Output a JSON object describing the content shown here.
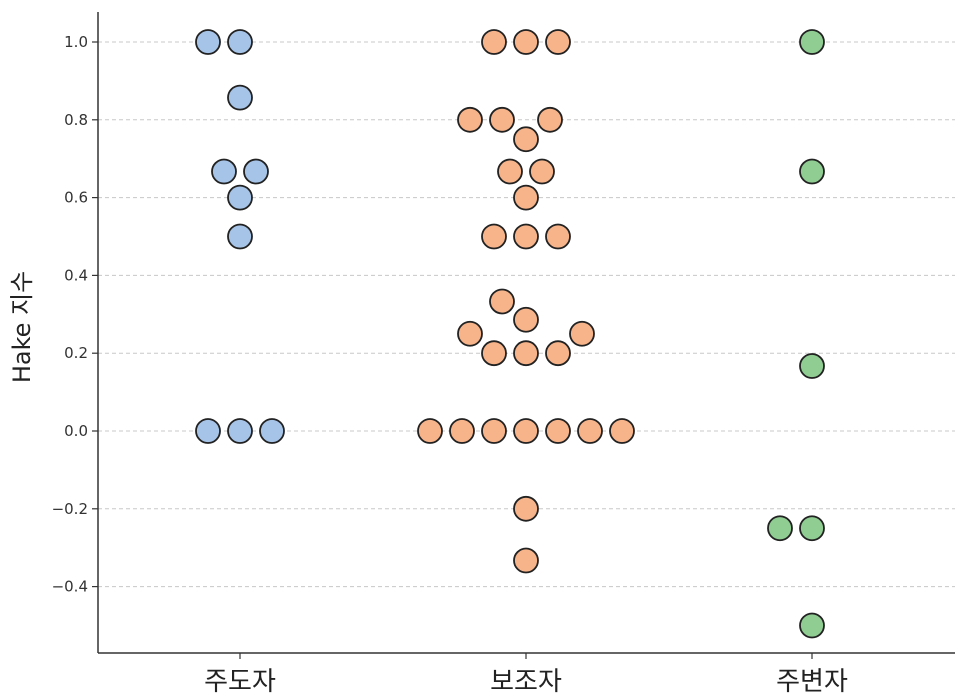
{
  "chart_data": {
    "type": "scatter",
    "subtype": "swarm",
    "title": "",
    "xlabel": "",
    "ylabel": "Hake 지수",
    "categories": [
      "주도자",
      "보조자",
      "주변자"
    ],
    "ylim": [
      -0.57,
      1.08
    ],
    "yticks": [
      -0.4,
      -0.2,
      0.0,
      0.2,
      0.4,
      0.6,
      0.8,
      1.0
    ],
    "ytick_labels": [
      "−0.4",
      "−0.2",
      "0.0",
      "0.2",
      "0.4",
      "0.6",
      "0.8",
      "1.0"
    ],
    "grid": true,
    "series": [
      {
        "name": "주도자",
        "color": "#a6c4e8",
        "points": [
          {
            "y": 1.0,
            "offset": -1
          },
          {
            "y": 1.0,
            "offset": 0
          },
          {
            "y": 0.857,
            "offset": 0
          },
          {
            "y": 0.667,
            "offset": -0.5
          },
          {
            "y": 0.667,
            "offset": 0.5
          },
          {
            "y": 0.6,
            "offset": 0
          },
          {
            "y": 0.5,
            "offset": 0
          },
          {
            "y": 0.0,
            "offset": -1
          },
          {
            "y": 0.0,
            "offset": 0
          },
          {
            "y": 0.0,
            "offset": 1
          }
        ]
      },
      {
        "name": "보조자",
        "color": "#f7b38a",
        "points": [
          {
            "y": 1.0,
            "offset": -1
          },
          {
            "y": 1.0,
            "offset": 0
          },
          {
            "y": 1.0,
            "offset": 1
          },
          {
            "y": 0.8,
            "offset": -1.75
          },
          {
            "y": 0.8,
            "offset": -0.75
          },
          {
            "y": 0.8,
            "offset": 0.75
          },
          {
            "y": 0.75,
            "offset": 0
          },
          {
            "y": 0.667,
            "offset": -0.5
          },
          {
            "y": 0.667,
            "offset": 0.5
          },
          {
            "y": 0.6,
            "offset": 0
          },
          {
            "y": 0.5,
            "offset": -1
          },
          {
            "y": 0.5,
            "offset": 0
          },
          {
            "y": 0.5,
            "offset": 1
          },
          {
            "y": 0.333,
            "offset": -0.75
          },
          {
            "y": 0.286,
            "offset": 0
          },
          {
            "y": 0.25,
            "offset": -1.75
          },
          {
            "y": 0.25,
            "offset": 1.75
          },
          {
            "y": 0.2,
            "offset": -1
          },
          {
            "y": 0.2,
            "offset": 0
          },
          {
            "y": 0.2,
            "offset": 1
          },
          {
            "y": 0.0,
            "offset": -3
          },
          {
            "y": 0.0,
            "offset": -2
          },
          {
            "y": 0.0,
            "offset": -1
          },
          {
            "y": 0.0,
            "offset": 0
          },
          {
            "y": 0.0,
            "offset": 1
          },
          {
            "y": 0.0,
            "offset": 2
          },
          {
            "y": 0.0,
            "offset": 3
          },
          {
            "y": -0.2,
            "offset": 0
          },
          {
            "y": -0.333,
            "offset": 0
          }
        ]
      },
      {
        "name": "주변자",
        "color": "#8fcd92",
        "points": [
          {
            "y": 1.0,
            "offset": 0
          },
          {
            "y": 0.667,
            "offset": 0
          },
          {
            "y": 0.167,
            "offset": 0
          },
          {
            "y": -0.25,
            "offset": -1
          },
          {
            "y": -0.25,
            "offset": 0
          },
          {
            "y": -0.5,
            "offset": 0
          }
        ]
      }
    ]
  }
}
